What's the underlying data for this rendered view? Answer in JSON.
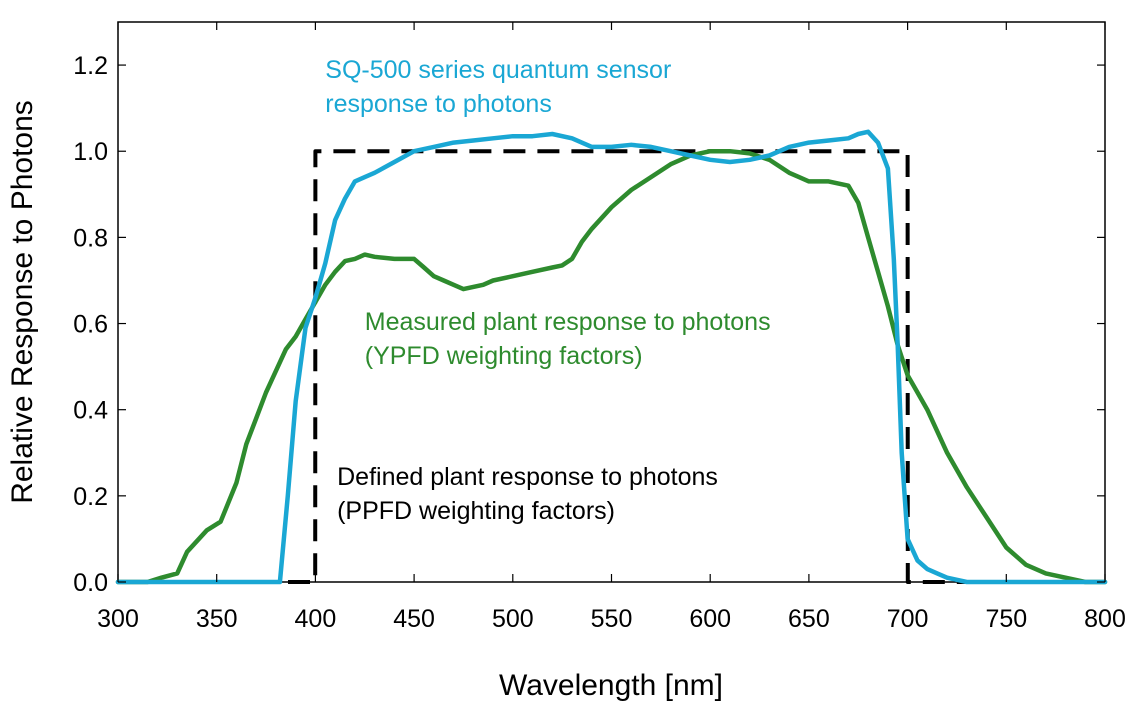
{
  "chart_data": {
    "type": "line",
    "title": "",
    "xlabel": "Wavelength [nm]",
    "ylabel": "Relative Response to Photons",
    "xlim": [
      300,
      800
    ],
    "ylim": [
      0,
      1.3
    ],
    "xticks": [
      "300",
      "350",
      "400",
      "450",
      "500",
      "550",
      "600",
      "650",
      "700",
      "750",
      "800"
    ],
    "xtick_values": [
      300,
      350,
      400,
      450,
      500,
      550,
      600,
      650,
      700,
      750,
      800
    ],
    "yticks": [
      "0.0",
      "0.2",
      "0.4",
      "0.6",
      "0.8",
      "1.0",
      "1.2"
    ],
    "ytick_values": [
      0,
      0.2,
      0.4,
      0.6,
      0.8,
      1.0,
      1.2
    ],
    "grid": false,
    "series": [
      {
        "name": "Defined plant response to photons (PPFD weighting factors)",
        "color": "#000000",
        "style": "dashed",
        "x": [
          300,
          399.9,
          400,
          700,
          700.1,
          800
        ],
        "y": [
          0,
          0,
          1.0,
          1.0,
          0,
          0
        ]
      },
      {
        "name": "Measured plant response to photons (YPFD weighting factors)",
        "color": "#2e8b2e",
        "style": "solid",
        "x": [
          300,
          315,
          322,
          330,
          335,
          345,
          352,
          360,
          365,
          370,
          375,
          385,
          390,
          395,
          400,
          405,
          410,
          415,
          420,
          425,
          430,
          440,
          450,
          455,
          460,
          465,
          470,
          475,
          480,
          485,
          490,
          500,
          510,
          520,
          525,
          530,
          535,
          540,
          550,
          560,
          570,
          580,
          590,
          600,
          610,
          620,
          630,
          640,
          645,
          650,
          660,
          670,
          675,
          680,
          685,
          690,
          695,
          700,
          705,
          710,
          720,
          730,
          740,
          750,
          760,
          770,
          780,
          790,
          800
        ],
        "y": [
          0,
          0,
          0.01,
          0.02,
          0.07,
          0.12,
          0.14,
          0.23,
          0.32,
          0.38,
          0.44,
          0.54,
          0.57,
          0.61,
          0.65,
          0.69,
          0.72,
          0.745,
          0.75,
          0.76,
          0.755,
          0.75,
          0.75,
          0.73,
          0.71,
          0.7,
          0.69,
          0.68,
          0.685,
          0.69,
          0.7,
          0.71,
          0.72,
          0.73,
          0.735,
          0.75,
          0.79,
          0.82,
          0.87,
          0.91,
          0.94,
          0.97,
          0.99,
          1.0,
          1.0,
          0.995,
          0.98,
          0.95,
          0.94,
          0.93,
          0.93,
          0.92,
          0.88,
          0.8,
          0.72,
          0.64,
          0.55,
          0.48,
          0.44,
          0.4,
          0.3,
          0.22,
          0.15,
          0.08,
          0.04,
          0.02,
          0.01,
          0.0,
          0.0
        ]
      },
      {
        "name": "SQ-500 series quantum sensor response to photons",
        "color": "#1aa7d4",
        "style": "solid",
        "x": [
          300,
          382,
          386,
          390,
          395,
          400,
          405,
          410,
          415,
          420,
          425,
          430,
          440,
          450,
          460,
          470,
          480,
          490,
          500,
          510,
          520,
          530,
          540,
          550,
          560,
          570,
          580,
          590,
          600,
          610,
          620,
          630,
          640,
          650,
          660,
          670,
          675,
          680,
          685,
          690,
          693,
          695,
          697,
          700,
          705,
          710,
          715,
          720,
          725,
          730,
          800
        ],
        "y": [
          0,
          0,
          0.2,
          0.42,
          0.59,
          0.66,
          0.74,
          0.84,
          0.89,
          0.93,
          0.94,
          0.95,
          0.975,
          1.0,
          1.01,
          1.02,
          1.025,
          1.03,
          1.035,
          1.035,
          1.04,
          1.03,
          1.01,
          1.01,
          1.015,
          1.01,
          1.0,
          0.99,
          0.98,
          0.975,
          0.98,
          0.99,
          1.01,
          1.02,
          1.025,
          1.03,
          1.04,
          1.045,
          1.02,
          0.96,
          0.75,
          0.55,
          0.3,
          0.1,
          0.05,
          0.03,
          0.02,
          0.01,
          0.005,
          0.0,
          0.0
        ]
      }
    ],
    "annotations": [
      {
        "id": "sq500",
        "lines": [
          "SQ-500 series quantum sensor",
          "response to photons"
        ],
        "color": "#1aa7d4",
        "anchor_x": 405,
        "anchor_y": 1.17
      },
      {
        "id": "ypfd",
        "lines": [
          "Measured plant response to photons",
          "(YPFD weighting factors)"
        ],
        "color": "#2e8b2e",
        "anchor_x": 425,
        "anchor_y": 0.585
      },
      {
        "id": "ppfd",
        "lines": [
          "Defined plant response to photons",
          "(PPFD weighting factors)"
        ],
        "color": "#000000",
        "anchor_x": 411,
        "anchor_y": 0.225
      }
    ]
  }
}
